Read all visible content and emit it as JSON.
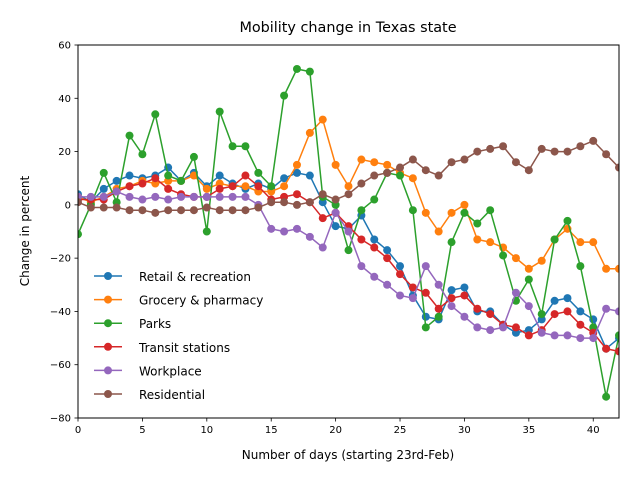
{
  "chart_data": {
    "type": "line",
    "title": "Mobility change in Texas state",
    "xlabel": "Number of days (starting 23rd-Feb)",
    "ylabel": "Change in percent",
    "xlim": [
      0,
      42
    ],
    "ylim": [
      -80,
      60
    ],
    "xticks": [
      0,
      5,
      10,
      15,
      20,
      25,
      30,
      35,
      40
    ],
    "yticks": [
      -80,
      -60,
      -40,
      -20,
      0,
      20,
      40,
      60
    ],
    "legend_position": "lower-left",
    "grid": false,
    "series": [
      {
        "name": "Retail & recreation",
        "color": "#1f77b4",
        "values": [
          4,
          1,
          6,
          9,
          11,
          10,
          11,
          14,
          9,
          12,
          7,
          11,
          8,
          6,
          8,
          6,
          10,
          12,
          11,
          1,
          -8,
          -9,
          -4,
          -13,
          -17,
          -23,
          -34,
          -42,
          -43,
          -32,
          -31,
          -40,
          -40,
          -45,
          -48,
          -47,
          -43,
          -36,
          -35,
          -40,
          -43,
          -54,
          -50
        ]
      },
      {
        "name": "Grocery & pharmacy",
        "color": "#ff7f0e",
        "values": [
          3,
          1,
          3,
          6,
          7,
          9,
          8,
          9,
          9,
          11,
          6,
          8,
          7,
          7,
          5,
          5,
          7,
          15,
          27,
          32,
          15,
          7,
          17,
          16,
          15,
          12,
          10,
          -3,
          -10,
          -3,
          0,
          -13,
          -14,
          -16,
          -20,
          -24,
          -21,
          -13,
          -9,
          -14,
          -14,
          -24,
          -24
        ]
      },
      {
        "name": "Parks",
        "color": "#2ca02c",
        "values": [
          -11,
          0,
          12,
          1,
          26,
          19,
          34,
          11,
          9,
          18,
          -10,
          35,
          22,
          22,
          12,
          7,
          41,
          51,
          50,
          3,
          0,
          -17,
          -2,
          2,
          12,
          11,
          -2,
          -46,
          -42,
          -14,
          -3,
          -7,
          -2,
          -19,
          -36,
          -28,
          -41,
          -13,
          -6,
          -23,
          -46,
          -72,
          -49
        ]
      },
      {
        "name": "Transit stations",
        "color": "#d62728",
        "values": [
          2,
          2,
          2,
          5,
          7,
          8,
          10,
          6,
          4,
          3,
          3,
          6,
          7,
          11,
          7,
          2,
          3,
          4,
          1,
          -5,
          -3,
          -8,
          -13,
          -16,
          -20,
          -26,
          -31,
          -33,
          -39,
          -35,
          -34,
          -39,
          -41,
          -45,
          -46,
          -49,
          -47,
          -41,
          -40,
          -45,
          -48,
          -54,
          -55
        ]
      },
      {
        "name": "Workplace",
        "color": "#9467bd",
        "values": [
          3,
          3,
          3,
          5,
          3,
          2,
          3,
          2,
          3,
          3,
          3,
          3,
          3,
          3,
          0,
          -9,
          -10,
          -9,
          -12,
          -16,
          -3,
          -10,
          -23,
          -27,
          -30,
          -34,
          -35,
          -23,
          -30,
          -38,
          -42,
          -46,
          -47,
          -46,
          -33,
          -38,
          -48,
          -49,
          -49,
          -50,
          -50,
          -39,
          -40
        ]
      },
      {
        "name": "Residential",
        "color": "#8c564b",
        "values": [
          1,
          -1,
          -1,
          -1,
          -2,
          -2,
          -3,
          -2,
          -2,
          -2,
          -1,
          -2,
          -2,
          -2,
          -1,
          1,
          1,
          0,
          1,
          4,
          2,
          4,
          8,
          11,
          12,
          14,
          17,
          13,
          11,
          16,
          17,
          20,
          21,
          22,
          16,
          13,
          21,
          20,
          20,
          22,
          24,
          19,
          14
        ]
      }
    ]
  }
}
